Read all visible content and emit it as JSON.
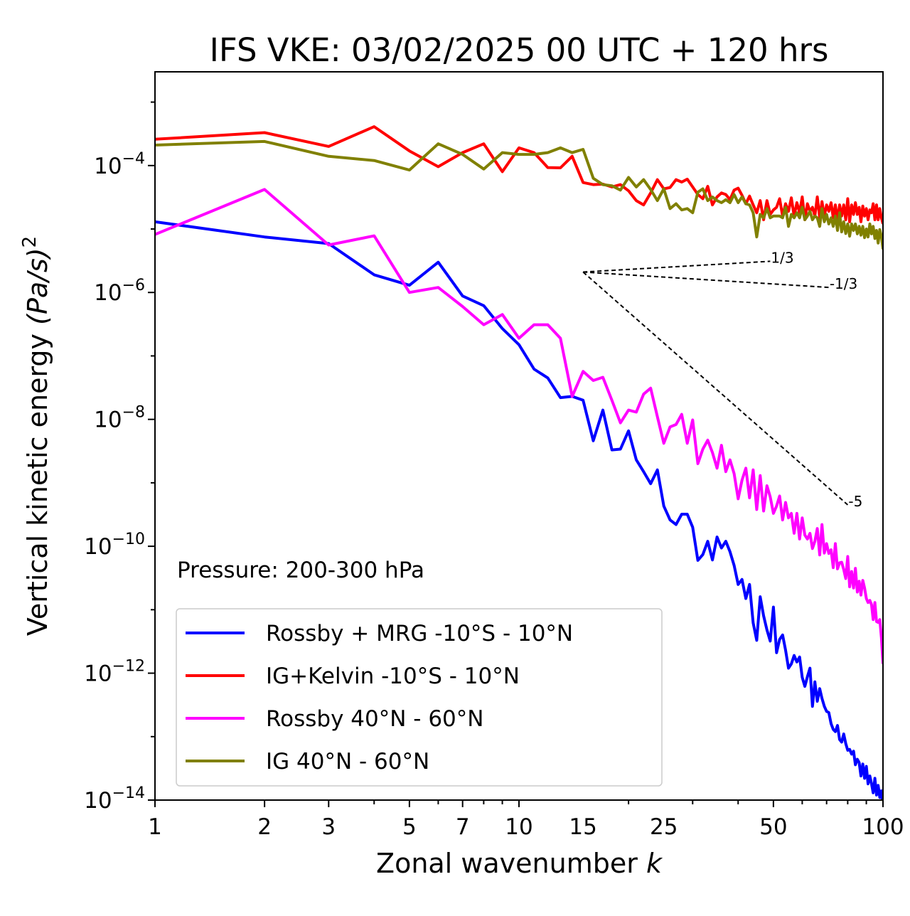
{
  "chart_data": {
    "type": "line",
    "title": "IFS VKE: 03/02/2025 00 UTC + 120 hrs",
    "xlabel": "Zonal wavenumber",
    "xlabel_symbol": "k",
    "ylabel": "Vertical kinetic energy",
    "ylabel_units": "(Pa/s)",
    "ylabel_units_exp": "2",
    "x_scale": "log",
    "y_scale": "log",
    "xlim": [
      1,
      100
    ],
    "ylim": [
      1e-14,
      0.003
    ],
    "x_ticks": [
      1,
      2,
      3,
      5,
      7,
      10,
      15,
      25,
      50,
      100
    ],
    "x_tick_labels": [
      "1",
      "2",
      "3",
      "5",
      "7",
      "10",
      "15",
      "25",
      "50",
      "100"
    ],
    "y_ticks": [
      {
        "value": 0.0001,
        "base": "10",
        "exp": "−4"
      },
      {
        "value": 1e-06,
        "base": "10",
        "exp": "−6"
      },
      {
        "value": 1e-08,
        "base": "10",
        "exp": "−8"
      },
      {
        "value": 1e-10,
        "base": "10",
        "exp": "−10"
      },
      {
        "value": 1e-12,
        "base": "10",
        "exp": "−12"
      },
      {
        "value": 1e-14,
        "base": "10",
        "exp": "−14"
      }
    ],
    "annotation": "Pressure: 200-300 hPa",
    "legend_position": "lower-left",
    "grid": false,
    "series": [
      {
        "name": "Rossby + MRG -10°S - 10°N",
        "color": "#0000ff",
        "x": [
          1,
          2,
          3,
          4,
          5,
          6,
          7,
          8,
          9,
          10,
          11,
          12,
          13,
          14,
          15,
          16,
          17,
          18,
          19,
          20,
          21,
          22,
          23,
          24,
          25,
          26,
          27,
          28,
          29,
          30,
          31,
          32,
          33,
          34,
          35,
          36,
          37,
          38,
          39,
          40,
          41,
          42,
          43,
          44,
          45,
          46,
          47,
          48,
          49,
          50,
          51,
          52,
          53,
          54,
          55,
          56,
          57,
          58,
          59,
          60,
          61,
          62,
          63,
          64,
          65,
          66,
          67,
          68,
          69,
          70,
          71,
          72,
          73,
          74,
          75,
          76,
          77,
          78,
          79,
          80,
          81,
          82,
          83,
          84,
          85,
          86,
          87,
          88,
          89,
          90,
          91,
          92,
          93,
          94,
          95,
          96,
          97,
          98,
          99,
          100
        ],
        "y": [
          1.3e-05,
          7.5e-06,
          5.9e-06,
          1.9e-06,
          1.3e-06,
          3e-06,
          8.8e-07,
          6.2e-07,
          2.7e-07,
          1.5e-07,
          6.2e-08,
          4.5e-08,
          2.2e-08,
          2.3e-08,
          2e-08,
          4.6e-09,
          1.4e-08,
          3.3e-09,
          3.4e-09,
          6.6e-09,
          2.3e-09,
          1.5e-09,
          9.7e-10,
          1.6e-09,
          4.3e-10,
          2.6e-10,
          2.2e-10,
          3.2e-10,
          3.2e-10,
          2e-10,
          6e-11,
          7.4e-11,
          1.2e-10,
          6.1e-11,
          1.4e-10,
          9.4e-11,
          1.2e-10,
          8.2e-11,
          5e-11,
          2.5e-11,
          3e-11,
          1.5e-11,
          2.5e-11,
          6.2e-12,
          3.3e-12,
          1.6e-11,
          8e-12,
          4.8e-12,
          3.2e-12,
          1.1e-11,
          2.1e-12,
          3.4e-12,
          4e-12,
          2.3e-12,
          1.2e-12,
          1.4e-12,
          1.9e-12,
          1.5e-12,
          1.8e-12,
          8.6e-13,
          6.2e-13,
          8.8e-13,
          1.2e-12,
          3e-13,
          7.3e-13,
          3.6e-13,
          5.7e-13,
          4e-13,
          3e-13,
          2.5e-13,
          2.4e-13,
          1.6e-13,
          1.3e-13,
          1.2e-13,
          1.5e-13,
          9e-14,
          8.2e-14,
          1.1e-13,
          7.8e-14,
          6.1e-14,
          6.3e-14,
          5.3e-14,
          5.9e-14,
          3.6e-14,
          4.4e-14,
          3.9e-14,
          2.4e-14,
          3.7e-14,
          2.2e-14,
          3.4e-14,
          1.8e-14,
          2.4e-14,
          1.8e-14,
          1.3e-14,
          2.2e-14,
          1.2e-14,
          1.7e-14,
          1.1e-14,
          1.4e-14,
          7.5e-15
        ]
      },
      {
        "name": "IG+Kelvin -10°S - 10°N",
        "color": "#ff0000",
        "x": [
          1,
          2,
          3,
          4,
          5,
          6,
          7,
          8,
          9,
          10,
          11,
          12,
          13,
          14,
          15,
          16,
          17,
          18,
          19,
          20,
          21,
          22,
          23,
          24,
          25,
          26,
          27,
          28,
          29,
          30,
          31,
          32,
          33,
          34,
          35,
          36,
          37,
          38,
          39,
          40,
          41,
          42,
          43,
          44,
          45,
          46,
          47,
          48,
          49,
          50,
          51,
          52,
          53,
          54,
          55,
          56,
          57,
          58,
          59,
          60,
          61,
          62,
          63,
          64,
          65,
          66,
          67,
          68,
          69,
          70,
          71,
          72,
          73,
          74,
          75,
          76,
          77,
          78,
          79,
          80,
          81,
          82,
          83,
          84,
          85,
          86,
          87,
          88,
          89,
          90,
          91,
          92,
          93,
          94,
          95,
          96,
          97,
          98,
          99,
          100
        ],
        "y": [
          0.00026,
          0.00033,
          0.0002,
          0.00041,
          0.00017,
          9.6e-05,
          0.00016,
          0.00022,
          8e-05,
          0.00019,
          0.00016,
          9.3e-05,
          9.2e-05,
          0.00014,
          5.4e-05,
          5e-05,
          5.1e-05,
          4.6e-05,
          5e-05,
          4e-05,
          2.8e-05,
          2.4e-05,
          3.7e-05,
          6e-05,
          4.3e-05,
          4.5e-05,
          6e-05,
          5.5e-05,
          6.1e-05,
          4.6e-05,
          3.5e-05,
          3e-05,
          4.7e-05,
          2.4e-05,
          3.2e-05,
          3.7e-05,
          3.5e-05,
          2.9e-05,
          4.1e-05,
          4.4e-05,
          3.4e-05,
          2.5e-05,
          3.3e-05,
          2.4e-05,
          1.8e-05,
          2.8e-05,
          1.4e-05,
          2.8e-05,
          1.7e-05,
          2e-05,
          2.2e-05,
          3e-05,
          1.6e-05,
          2.5e-05,
          1.9e-05,
          3.1e-05,
          1.6e-05,
          2.6e-05,
          1.8e-05,
          3.2e-05,
          1.4e-05,
          2.5e-05,
          1.9e-05,
          2.2e-05,
          1.6e-05,
          3.2e-05,
          1.5e-05,
          2.7e-05,
          1.6e-05,
          2.4e-05,
          1.9e-05,
          2.6e-05,
          1.5e-05,
          2.4e-05,
          1.4e-05,
          2.4e-05,
          1.6e-05,
          2.4e-05,
          1.4e-05,
          3e-05,
          1.3e-05,
          2.4e-05,
          1.7e-05,
          2.6e-05,
          1.7e-05,
          2.2e-05,
          1.3e-05,
          2.3e-05,
          1.6e-05,
          2.1e-05,
          1.4e-05,
          2e-05,
          1.8e-05,
          2.5e-05,
          1.4e-05,
          2.4e-05,
          1.4e-05,
          2.1e-05,
          1.5e-05,
          1.2e-05
        ]
      },
      {
        "name": "Rossby 40°N - 60°N",
        "color": "#ff00ff",
        "x": [
          1,
          2,
          3,
          4,
          5,
          6,
          7,
          8,
          9,
          10,
          11,
          12,
          13,
          14,
          15,
          16,
          17,
          18,
          19,
          20,
          21,
          22,
          23,
          24,
          25,
          26,
          27,
          28,
          29,
          30,
          31,
          32,
          33,
          34,
          35,
          36,
          37,
          38,
          39,
          40,
          41,
          42,
          43,
          44,
          45,
          46,
          47,
          48,
          49,
          50,
          51,
          52,
          53,
          54,
          55,
          56,
          57,
          58,
          59,
          60,
          61,
          62,
          63,
          64,
          65,
          66,
          67,
          68,
          69,
          70,
          71,
          72,
          73,
          74,
          75,
          76,
          77,
          78,
          79,
          80,
          81,
          82,
          83,
          84,
          85,
          86,
          87,
          88,
          89,
          90,
          91,
          92,
          93,
          94,
          95,
          96,
          97,
          98,
          99,
          100
        ],
        "y": [
          8.2e-06,
          4.2e-05,
          5.6e-06,
          7.8e-06,
          1e-06,
          1.2e-06,
          6e-07,
          3.1e-07,
          4.5e-07,
          1.9e-07,
          3.1e-07,
          3.1e-07,
          1.9e-07,
          2.3e-08,
          5.7e-08,
          4.1e-08,
          4.6e-08,
          2e-08,
          8.8e-09,
          1.4e-08,
          1.3e-08,
          2.5e-08,
          3.1e-08,
          1.1e-08,
          4.2e-09,
          7.6e-09,
          8.3e-09,
          1.2e-08,
          4.2e-09,
          9.8e-09,
          2e-09,
          3.4e-09,
          4.7e-09,
          3e-09,
          1.7e-09,
          3.9e-09,
          1.5e-09,
          2.3e-09,
          1.4e-09,
          5.6e-10,
          1.1e-09,
          1.7e-09,
          5.8e-10,
          1.6e-09,
          3.8e-10,
          1.3e-09,
          3.6e-10,
          9e-10,
          6e-10,
          3.3e-10,
          4.3e-10,
          6.2e-10,
          2.6e-10,
          4.9e-10,
          2.8e-10,
          3.3e-10,
          1.6e-10,
          3.3e-10,
          1.3e-10,
          2.8e-10,
          1.5e-10,
          1.3e-10,
          1.6e-10,
          9.2e-11,
          1.2e-10,
          1.9e-10,
          7.3e-11,
          2.2e-10,
          7.8e-11,
          1.1e-10,
          7.7e-11,
          8.8e-11,
          4.6e-11,
          1.1e-10,
          4.4e-11,
          5.5e-11,
          5.6e-11,
          4.3e-11,
          3.1e-11,
          6.9e-11,
          2.3e-11,
          4e-11,
          2.2e-11,
          4.5e-11,
          1.9e-11,
          2.8e-11,
          1.7e-11,
          2.9e-11,
          2.2e-11,
          1.5e-11,
          1.3e-11,
          1.4e-11,
          1.2e-11,
          7e-12,
          1.3e-11,
          6.5e-12,
          6.3e-12,
          7e-12,
          3.6e-12,
          1.4e-12
        ]
      },
      {
        "name": "IG 40°N - 60°N",
        "color": "#808000",
        "x": [
          1,
          2,
          3,
          4,
          5,
          6,
          7,
          8,
          9,
          10,
          11,
          12,
          13,
          14,
          15,
          16,
          17,
          18,
          19,
          20,
          21,
          22,
          23,
          24,
          25,
          26,
          27,
          28,
          29,
          30,
          31,
          32,
          33,
          34,
          35,
          36,
          37,
          38,
          39,
          40,
          41,
          42,
          43,
          44,
          45,
          46,
          47,
          48,
          49,
          50,
          51,
          52,
          53,
          54,
          55,
          56,
          57,
          58,
          59,
          60,
          61,
          62,
          63,
          64,
          65,
          66,
          67,
          68,
          69,
          70,
          71,
          72,
          73,
          74,
          75,
          76,
          77,
          78,
          79,
          80,
          81,
          82,
          83,
          84,
          85,
          86,
          87,
          88,
          89,
          90,
          91,
          92,
          93,
          94,
          95,
          96,
          97,
          98,
          99,
          100
        ],
        "y": [
          0.00021,
          0.00024,
          0.00014,
          0.00012,
          8.5e-05,
          0.00022,
          0.00015,
          8.8e-05,
          0.00016,
          0.00015,
          0.00015,
          0.00016,
          0.00019,
          0.00016,
          0.00018,
          6.3e-05,
          5e-05,
          4.8e-05,
          4.1e-05,
          6.5e-05,
          4.6e-05,
          6e-05,
          4.2e-05,
          2.8e-05,
          4.3e-05,
          2.1e-05,
          2.5e-05,
          2e-05,
          2.1e-05,
          1.8e-05,
          3.8e-05,
          4.3e-05,
          2.8e-05,
          3.2e-05,
          2.8e-05,
          2.6e-05,
          2.9e-05,
          2.6e-05,
          3.5e-05,
          2.6e-05,
          3.2e-05,
          2.5e-05,
          2.4e-05,
          1.8e-05,
          7.5e-06,
          1.7e-05,
          1.5e-05,
          2.1e-05,
          1.5e-05,
          1.6e-05,
          1.6e-05,
          1.6e-05,
          1.5e-05,
          2.2e-05,
          1.1e-05,
          1.7e-05,
          1.5e-05,
          1.8e-05,
          1.5e-05,
          2.2e-05,
          1.4e-05,
          1.6e-05,
          1.9e-05,
          1.4e-05,
          1.6e-05,
          1.5e-05,
          1.1e-05,
          2.1e-05,
          1.3e-05,
          1.7e-05,
          1.2e-05,
          1.5e-05,
          1.1e-05,
          1.6e-05,
          9.5e-06,
          1.8e-05,
          9e-06,
          1.3e-05,
          8.5e-06,
          1.2e-05,
          7.7e-06,
          1.2e-05,
          9.5e-06,
          1.2e-05,
          8.4e-06,
          1.1e-05,
          8e-06,
          1.1e-05,
          7.3e-06,
          1e-05,
          7.5e-06,
          1.2e-05,
          8.4e-06,
          1.1e-05,
          7.1e-06,
          9.5e-06,
          6e-06,
          9.8e-06,
          7.6e-06,
          4.8e-06
        ]
      }
    ],
    "reference_lines": [
      {
        "slope_label": "1/3",
        "x": [
          15,
          49
        ],
        "y": [
          2.1e-06,
          3.1e-06
        ]
      },
      {
        "slope_label": "-1/3",
        "x": [
          15,
          71
        ],
        "y": [
          2.1e-06,
          1.2e-06
        ]
      },
      {
        "slope_label": "-5",
        "x": [
          15,
          80
        ],
        "y": [
          2.1e-06,
          4.5e-10
        ]
      }
    ]
  }
}
